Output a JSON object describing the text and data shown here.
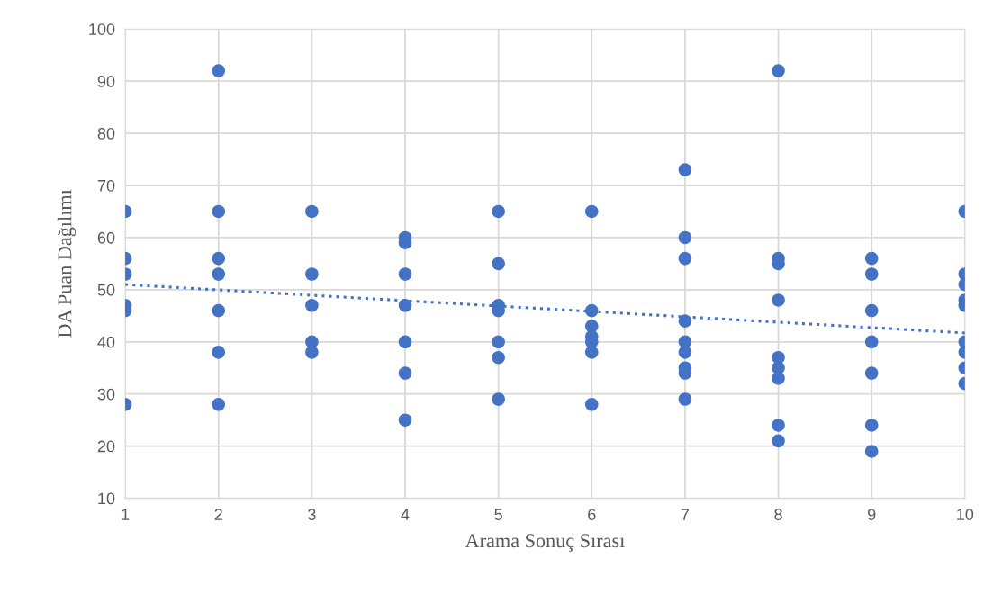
{
  "chart_data": {
    "type": "scatter",
    "xlabel": "Arama Sonuç Sırası",
    "ylabel": "DA Puan Dağılımı",
    "xlim": [
      1,
      10
    ],
    "xticks": [
      1,
      2,
      3,
      4,
      5,
      6,
      7,
      8,
      9,
      10
    ],
    "ylim": [
      10,
      100
    ],
    "yticks": [
      10,
      20,
      30,
      40,
      50,
      60,
      70,
      80,
      90,
      100
    ],
    "grid": true,
    "legend": false,
    "marker": "circle",
    "x": [
      1,
      1,
      1,
      1,
      1,
      1,
      2,
      2,
      2,
      2,
      2,
      2,
      2,
      3,
      3,
      3,
      3,
      3,
      4,
      4,
      4,
      4,
      4,
      4,
      4,
      5,
      5,
      5,
      5,
      5,
      5,
      5,
      6,
      6,
      6,
      6,
      6,
      6,
      6,
      7,
      7,
      7,
      7,
      7,
      7,
      7,
      7,
      7,
      8,
      8,
      8,
      8,
      8,
      8,
      8,
      8,
      8,
      9,
      9,
      9,
      9,
      9,
      9,
      9,
      10,
      10,
      10,
      10,
      10,
      10,
      10,
      10,
      10
    ],
    "series": [
      {
        "color": "#4472c4",
        "values": [
          65,
          56,
          53,
          47,
          46,
          28,
          92,
          65,
          56,
          53,
          46,
          38,
          28,
          65,
          53,
          47,
          40,
          38,
          60,
          59,
          53,
          47,
          40,
          34,
          25,
          65,
          55,
          47,
          46,
          40,
          37,
          29,
          65,
          46,
          43,
          41,
          40,
          38,
          28,
          73,
          60,
          56,
          44,
          40,
          38,
          35,
          34,
          29,
          92,
          56,
          55,
          48,
          37,
          35,
          33,
          24,
          21,
          56,
          53,
          46,
          40,
          34,
          24,
          19,
          65,
          53,
          51,
          48,
          47,
          40,
          38,
          35,
          32
        ]
      },
      {
        "type": "line",
        "color": "#4472c4",
        "line_style": "dotted",
        "marker": "none",
        "x": [
          1,
          10
        ],
        "values": [
          51,
          41.7
        ]
      }
    ]
  }
}
